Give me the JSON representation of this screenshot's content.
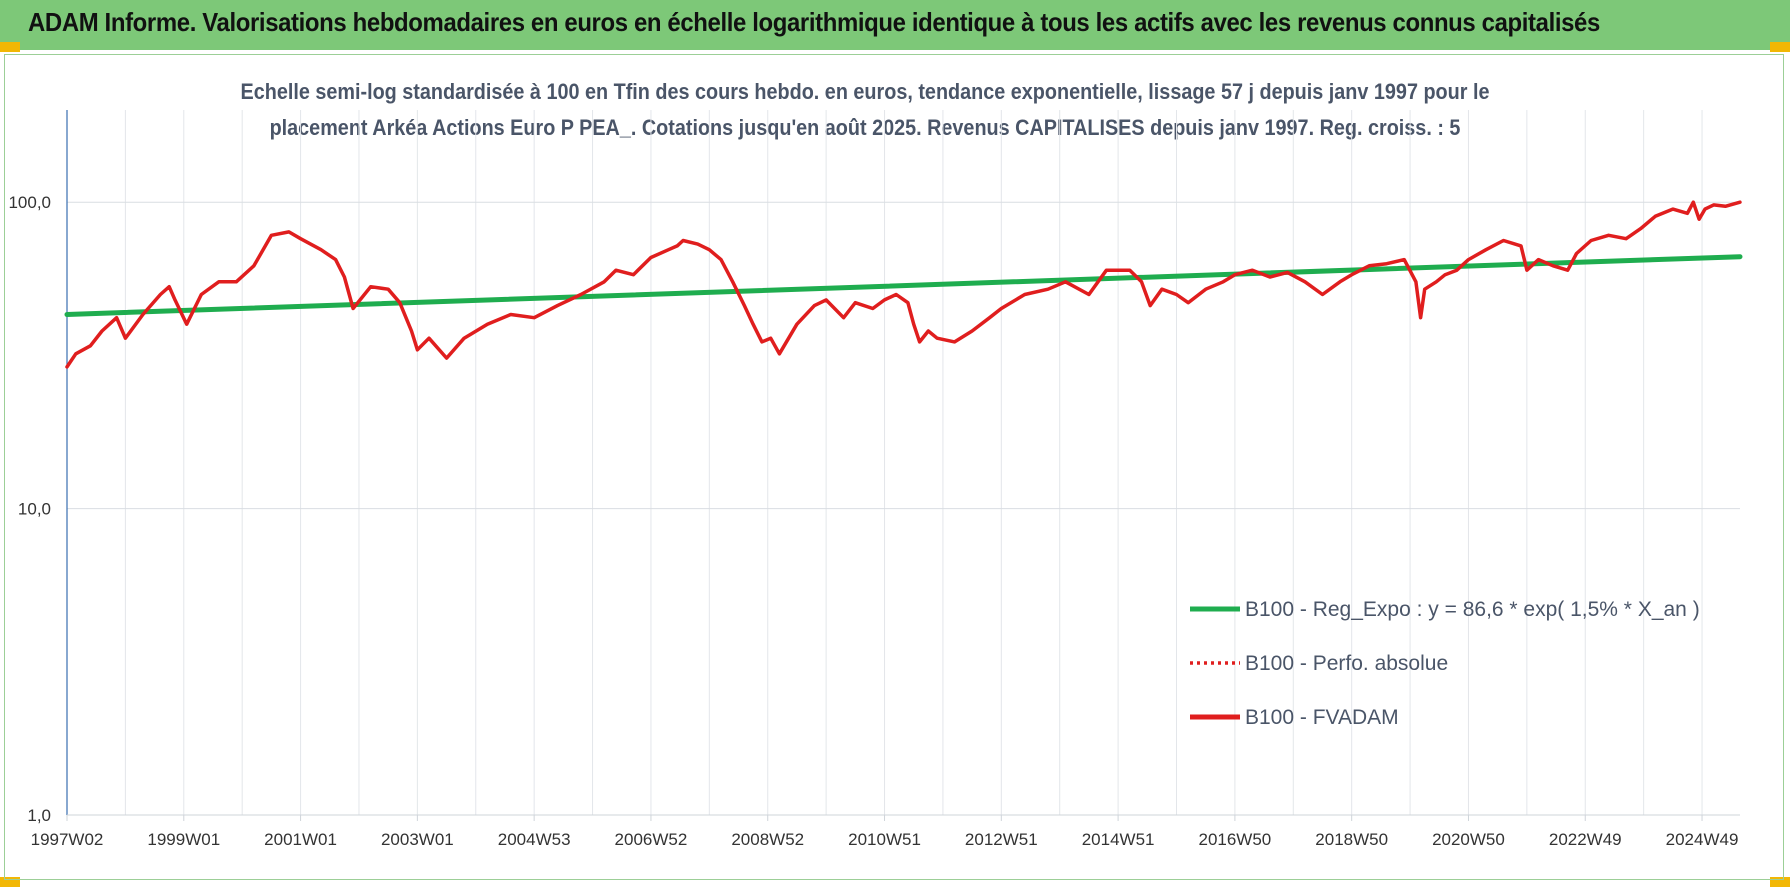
{
  "header": {
    "title": "ADAM Informe. Valorisations hebdomadaires en euros en échelle logarithmique identique à tous les actifs avec les revenus connus capitalisés",
    "background_color": "#7dc878"
  },
  "chart_data": {
    "type": "line",
    "title": "Echelle semi-log standardisée à 100 en Tfin des cours hebdo. en euros, tendance exponentielle, lissage 57 j depuis janv 1997 pour le placement Arkéa Actions Euro P PEA_. Cotations jusqu'en août 2025. Revenus CAPITALISES depuis janv 1997. Reg. croiss. : 5",
    "title_lines": [
      "Echelle semi-log standardisée à 100 en Tfin des cours hebdo. en euros, tendance exponentielle, lissage 57 j depuis janv 1997 pour le",
      "placement Arkéa Actions Euro P PEA_. Cotations jusqu'en août 2025. Revenus CAPITALISES depuis janv 1997. Reg. croiss. : 5"
    ],
    "y_scale": "log",
    "ylim": [
      1,
      200
    ],
    "y_ticks": [
      1,
      10,
      100
    ],
    "y_tick_labels": [
      "1,0",
      "10,0",
      "100,0"
    ],
    "xlim": [
      1997.0,
      2025.65
    ],
    "x_tick_labels": [
      "1997W02",
      "1999W01",
      "2001W01",
      "2003W01",
      "2004W53",
      "2006W52",
      "2008W52",
      "2010W51",
      "2012W51",
      "2014W51",
      "2016W50",
      "2018W50",
      "2020W50",
      "2022W49",
      "2024W49"
    ],
    "x_tick_positions": [
      1997.0,
      1999.0,
      2001.0,
      2003.0,
      2005.0,
      2007.0,
      2009.0,
      2011.0,
      2013.0,
      2015.0,
      2017.0,
      2019.0,
      2021.0,
      2023.0,
      2025.0
    ],
    "grid": true,
    "legend_position": "bottom-right",
    "series": [
      {
        "name": "B100 - Reg_Expo : y = 86,6 * exp( 1,5% *  X_an )",
        "color": "#1fad4f",
        "style": "solid",
        "x": [
          1997.0,
          2025.65
        ],
        "values": [
          43.0,
          66.4
        ]
      },
      {
        "name": "B100 - Perfo. absolue",
        "color": "#e01e1e",
        "style": "dotted",
        "x": [],
        "values": []
      },
      {
        "name": "B100 - FVADAM",
        "color": "#e01e1e",
        "style": "solid",
        "x": [
          1997.0,
          1997.15,
          1997.4,
          1997.6,
          1997.85,
          1998.0,
          1998.3,
          1998.6,
          1998.75,
          1998.85,
          1999.05,
          1999.3,
          1999.6,
          1999.9,
          2000.2,
          2000.5,
          2000.8,
          2001.0,
          2001.35,
          2001.6,
          2001.75,
          2001.9,
          2002.2,
          2002.5,
          2002.7,
          2002.9,
          2003.0,
          2003.2,
          2003.5,
          2003.8,
          2004.2,
          2004.6,
          2005.0,
          2005.4,
          2005.8,
          2006.2,
          2006.4,
          2006.7,
          2007.0,
          2007.3,
          2007.45,
          2007.55,
          2007.8,
          2008.0,
          2008.2,
          2008.4,
          2008.6,
          2008.75,
          2008.9,
          2009.05,
          2009.2,
          2009.5,
          2009.8,
          2010.0,
          2010.3,
          2010.5,
          2010.8,
          2011.0,
          2011.2,
          2011.4,
          2011.5,
          2011.6,
          2011.75,
          2011.9,
          2012.2,
          2012.5,
          2012.8,
          2013.0,
          2013.4,
          2013.8,
          2014.1,
          2014.5,
          2014.8,
          2015.2,
          2015.4,
          2015.55,
          2015.75,
          2016.0,
          2016.2,
          2016.5,
          2016.8,
          2017.0,
          2017.3,
          2017.6,
          2017.9,
          2018.2,
          2018.5,
          2018.8,
          2019.0,
          2019.3,
          2019.6,
          2019.9,
          2020.1,
          2020.18,
          2020.25,
          2020.45,
          2020.6,
          2020.8,
          2021.0,
          2021.3,
          2021.6,
          2021.9,
          2022.0,
          2022.2,
          2022.45,
          2022.7,
          2022.85,
          2023.1,
          2023.4,
          2023.7,
          2023.95,
          2024.2,
          2024.5,
          2024.75,
          2024.85,
          2024.95,
          2025.05,
          2025.2,
          2025.4,
          2025.65
        ],
        "values": [
          29,
          32,
          34,
          38,
          42,
          36,
          43,
          50,
          53,
          48,
          40,
          50,
          55,
          55,
          62,
          78,
          80,
          76,
          70,
          65,
          57,
          45,
          53,
          52,
          47,
          38,
          33,
          36,
          31,
          36,
          40,
          43,
          42,
          46,
          50,
          55,
          60,
          58,
          66,
          70,
          72,
          75,
          73,
          70,
          65,
          55,
          46,
          40,
          35,
          36,
          32,
          40,
          46,
          48,
          42,
          47,
          45,
          48,
          50,
          47,
          40,
          35,
          38,
          36,
          35,
          38,
          42,
          45,
          50,
          52,
          55,
          50,
          60,
          60,
          55,
          46,
          52,
          50,
          47,
          52,
          55,
          58,
          60,
          57,
          59,
          55,
          50,
          55,
          58,
          62,
          63,
          65,
          55,
          42,
          52,
          55,
          58,
          60,
          65,
          70,
          75,
          72,
          60,
          65,
          62,
          60,
          68,
          75,
          78,
          76,
          82,
          90,
          95,
          92,
          100,
          88,
          95,
          98,
          97,
          100
        ]
      }
    ]
  }
}
